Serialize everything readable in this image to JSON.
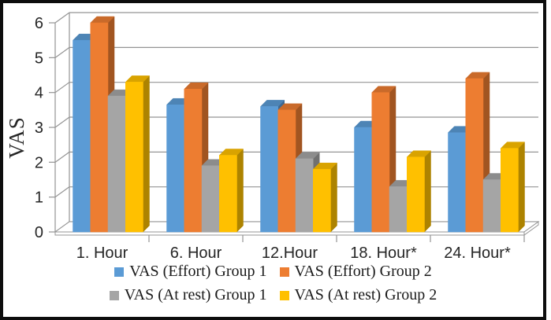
{
  "chart_data": {
    "type": "bar",
    "projection": "3d",
    "title": "",
    "ylabel": "VAS",
    "xlabel": "",
    "ylim": [
      0,
      6
    ],
    "y_tick_step": 1,
    "grid": true,
    "legend_position": "bottom",
    "categories": [
      "1. Hour",
      "6. Hour",
      "12.Hour",
      "18. Hour*",
      "24. Hour*"
    ],
    "series": [
      {
        "name": "VAS (Effort) Group 1",
        "color": "#5B9BD5",
        "values": [
          5.5,
          3.65,
          3.6,
          3.0,
          2.85
        ]
      },
      {
        "name": "VAS (Effort) Group 2",
        "color": "#ED7D31",
        "values": [
          6.0,
          4.1,
          3.5,
          4.0,
          4.4
        ]
      },
      {
        "name": "VAS (At rest) Group 1",
        "color": "#A5A5A5",
        "values": [
          3.9,
          1.9,
          2.1,
          1.3,
          1.5
        ]
      },
      {
        "name": "VAS (At rest) Group 2",
        "color": "#FFC000",
        "values": [
          4.3,
          2.2,
          1.8,
          2.15,
          2.4
        ]
      }
    ],
    "colors": {
      "gridline": "#949494",
      "axis": "#949494",
      "text": "#262626"
    }
  }
}
